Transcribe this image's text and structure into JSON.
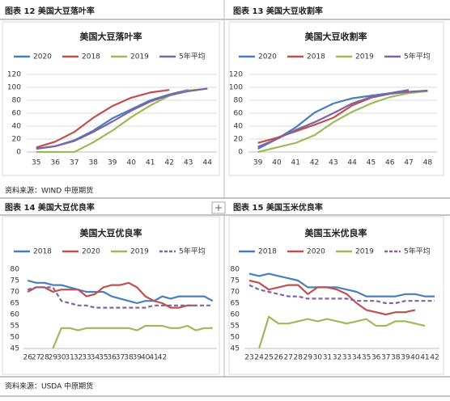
{
  "captions": [
    "图表 12 美国大豆落叶率",
    "图表 13 美国大豆收割率",
    "图表 14 美国大豆优良率",
    "图表 15 美国玉米优良率"
  ],
  "sources": [
    "资料来源：WIND 中原期货",
    "资料来源：USDA 中原期货"
  ],
  "chart_data": [
    {
      "type": "line",
      "title": "美国大豆落叶率",
      "categories": [
        "35",
        "36",
        "37",
        "38",
        "39",
        "40",
        "41",
        "42",
        "43",
        "44"
      ],
      "series": [
        {
          "name": "2020",
          "color": "#4a7ebb",
          "values": [
            5,
            9,
            18,
            33,
            52,
            66,
            80,
            89,
            96,
            null
          ]
        },
        {
          "name": "2018",
          "color": "#c0504d",
          "values": [
            7,
            16,
            31,
            53,
            71,
            84,
            92,
            96,
            null,
            null
          ]
        },
        {
          "name": "2019",
          "color": "#9bbb59",
          "values": [
            0,
            0,
            0,
            15,
            33,
            54,
            72,
            87,
            95,
            98
          ]
        },
        {
          "name": "5年平均",
          "color": "#8064a2",
          "values": [
            5,
            9,
            17,
            31,
            47,
            64,
            78,
            88,
            94,
            98
          ]
        }
      ],
      "ylim": [
        0,
        120
      ],
      "yticks": [
        0,
        20,
        40,
        60,
        80,
        100,
        120
      ],
      "grid": true
    },
    {
      "type": "line",
      "title": "美国大豆收割率",
      "categories": [
        "39",
        "40",
        "41",
        "42",
        "43",
        "44",
        "45",
        "46",
        "47",
        "48"
      ],
      "series": [
        {
          "name": "2020",
          "color": "#4a7ebb",
          "values": [
            5,
            20,
            38,
            61,
            75,
            83,
            87,
            91,
            96,
            null
          ]
        },
        {
          "name": "2018",
          "color": "#c0504d",
          "values": [
            14,
            22,
            32,
            42,
            53,
            72,
            84,
            90,
            94,
            null
          ]
        },
        {
          "name": "2019",
          "color": "#9bbb59",
          "values": [
            0,
            7,
            14,
            26,
            46,
            62,
            75,
            85,
            91,
            94
          ]
        },
        {
          "name": "5年平均",
          "color": "#8064a2",
          "values": [
            8,
            20,
            34,
            46,
            60,
            75,
            85,
            90,
            93,
            95
          ]
        }
      ],
      "ylim": [
        0,
        120
      ],
      "yticks": [
        0,
        20,
        40,
        60,
        80,
        100,
        120
      ],
      "grid": true
    },
    {
      "type": "line",
      "title": "美国大豆优良率",
      "categories": [
        "26",
        "27",
        "28",
        "29",
        "30",
        "31",
        "32",
        "33",
        "34",
        "35",
        "36",
        "37",
        "38",
        "39",
        "40",
        "41",
        "42",
        null,
        null,
        null,
        null,
        null,
        null
      ],
      "series": [
        {
          "name": "2018",
          "color": "#4a7ebb",
          "values": [
            75,
            74,
            74,
            73,
            73,
            72,
            71,
            70,
            70,
            70,
            68,
            67,
            66,
            65,
            66,
            66,
            68,
            67,
            68,
            68,
            68,
            68,
            66
          ]
        },
        {
          "name": "2020",
          "color": "#c0504d",
          "values": [
            70,
            72,
            72,
            70,
            71,
            71,
            71,
            68,
            69,
            72,
            73,
            73,
            74,
            72,
            68,
            66,
            65,
            63,
            63,
            64,
            64,
            null,
            null
          ]
        },
        {
          "name": "2019",
          "color": "#9bbb59",
          "values": [
            null,
            null,
            null,
            45,
            54,
            54,
            53,
            54,
            54,
            54,
            54,
            54,
            54,
            53,
            55,
            55,
            55,
            54,
            54,
            55,
            53,
            54,
            54
          ]
        },
        {
          "name": "5年平均",
          "color": "#8064a2",
          "dash": true,
          "values": [
            71,
            72,
            72,
            72,
            66,
            65,
            64,
            64,
            63,
            63,
            63,
            63,
            63,
            63,
            63,
            64,
            64,
            64,
            64,
            64,
            64,
            64,
            64
          ]
        }
      ],
      "ylim": [
        45,
        80
      ],
      "yticks": [
        45,
        50,
        55,
        60,
        65,
        70,
        75,
        80
      ],
      "grid": false
    },
    {
      "type": "line",
      "title": "美国玉米优良率",
      "categories": [
        "23",
        "24",
        "25",
        "26",
        "27",
        "28",
        "29",
        "30",
        "31",
        "32",
        "33",
        "34",
        "35",
        "36",
        "37",
        "38",
        "39",
        "40",
        "41",
        "42"
      ],
      "series": [
        {
          "name": "2018",
          "color": "#4a7ebb",
          "values": [
            78,
            77,
            78,
            77,
            76,
            75,
            72,
            72,
            72,
            72,
            71,
            70,
            68,
            68,
            68,
            68,
            69,
            69,
            68,
            68
          ]
        },
        {
          "name": "2020",
          "color": "#c0504d",
          "values": [
            75,
            74,
            71,
            72,
            73,
            73,
            69,
            72,
            72,
            71,
            69,
            65,
            62,
            61,
            60,
            61,
            61,
            62,
            null,
            null
          ]
        },
        {
          "name": "2019",
          "color": "#9bbb59",
          "values": [
            null,
            45,
            59,
            56,
            56,
            57,
            58,
            57,
            58,
            57,
            56,
            57,
            58,
            55,
            55,
            57,
            57,
            56,
            55,
            null
          ]
        },
        {
          "name": "5年平均",
          "color": "#8064a2",
          "dash": true,
          "values": [
            73,
            71,
            70,
            69,
            68,
            68,
            67,
            67,
            67,
            67,
            67,
            66,
            66,
            66,
            65,
            65,
            66,
            66,
            66,
            66
          ]
        }
      ],
      "ylim": [
        45,
        80
      ],
      "yticks": [
        45,
        50,
        55,
        60,
        65,
        70,
        75,
        80
      ],
      "grid": false
    }
  ]
}
